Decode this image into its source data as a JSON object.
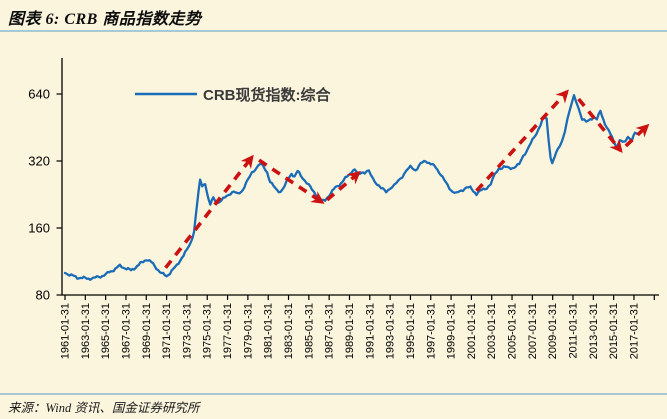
{
  "header": {
    "title": "图表 6: CRB 商品指数走势"
  },
  "legend": {
    "label": "CRB现货指数:综合"
  },
  "footer": {
    "source": "来源：Wind 资讯、国金证券研究所"
  },
  "colors": {
    "series_line": "#1B6CB7",
    "trend_arrow": "#CC1111",
    "background": "#FBF5DE",
    "divider": "#A6C9D4",
    "axis": "#000000",
    "legend_text": "#3a3a3a"
  },
  "chart_data": {
    "type": "line",
    "title": "CRB商品指数走势",
    "y_scale": "log2",
    "grid": false,
    "legend_position": "top-left-inside",
    "ylim": [
      80,
      700
    ],
    "y_ticks": [
      80,
      160,
      320,
      640
    ],
    "x_range_years": [
      1961,
      2019
    ],
    "x_tick_labels": [
      "1961-01-31",
      "1963-01-31",
      "1965-01-31",
      "1967-01-31",
      "1969-01-31",
      "1971-01-31",
      "1973-01-31",
      "1975-01-31",
      "1977-01-31",
      "1979-01-31",
      "1981-01-31",
      "1983-01-31",
      "1985-01-31",
      "1987-01-31",
      "1989-01-31",
      "1991-01-31",
      "1993-01-31",
      "1995-01-31",
      "1997-01-31",
      "1999-01-31",
      "2001-01-31",
      "2003-01-31",
      "2005-01-31",
      "2007-01-31",
      "2009-01-31",
      "2011-01-31",
      "2013-01-31",
      "2015-01-31",
      "2017-01-31"
    ],
    "series": [
      {
        "name": "CRB现货指数:综合",
        "color": "#1B6CB7",
        "points": [
          [
            1961.0,
            101
          ],
          [
            1961.6,
            98
          ],
          [
            1962.2,
            96
          ],
          [
            1963.0,
            95
          ],
          [
            1963.8,
            95
          ],
          [
            1964.5,
            97
          ],
          [
            1965.2,
            100
          ],
          [
            1965.8,
            104
          ],
          [
            1966.4,
            108
          ],
          [
            1966.9,
            106
          ],
          [
            1967.5,
            103
          ],
          [
            1968.1,
            108
          ],
          [
            1968.7,
            113
          ],
          [
            1969.0,
            116
          ],
          [
            1969.5,
            112
          ],
          [
            1970.0,
            106
          ],
          [
            1970.5,
            100
          ],
          [
            1971.0,
            97
          ],
          [
            1971.5,
            103
          ],
          [
            1972.0,
            108
          ],
          [
            1972.5,
            118
          ],
          [
            1973.0,
            127
          ],
          [
            1973.4,
            138
          ],
          [
            1973.7,
            155
          ],
          [
            1974.0,
            205
          ],
          [
            1974.3,
            262
          ],
          [
            1974.5,
            248
          ],
          [
            1974.8,
            255
          ],
          [
            1975.1,
            215
          ],
          [
            1975.3,
            203
          ],
          [
            1975.6,
            220
          ],
          [
            1976.0,
            208
          ],
          [
            1976.4,
            212
          ],
          [
            1976.9,
            223
          ],
          [
            1977.3,
            230
          ],
          [
            1977.6,
            232
          ],
          [
            1978.0,
            227
          ],
          [
            1978.5,
            238
          ],
          [
            1979.0,
            262
          ],
          [
            1979.4,
            284
          ],
          [
            1979.8,
            298
          ],
          [
            1980.2,
            310
          ],
          [
            1980.5,
            303
          ],
          [
            1980.9,
            285
          ],
          [
            1981.2,
            258
          ],
          [
            1981.7,
            240
          ],
          [
            1982.2,
            233
          ],
          [
            1982.6,
            245
          ],
          [
            1983.0,
            267
          ],
          [
            1983.3,
            282
          ],
          [
            1983.6,
            272
          ],
          [
            1983.9,
            287
          ],
          [
            1984.2,
            277
          ],
          [
            1984.6,
            262
          ],
          [
            1985.0,
            249
          ],
          [
            1985.3,
            238
          ],
          [
            1985.7,
            227
          ],
          [
            1986.0,
            219
          ],
          [
            1986.3,
            211
          ],
          [
            1986.6,
            214
          ],
          [
            1987.0,
            225
          ],
          [
            1987.3,
            233
          ],
          [
            1987.6,
            243
          ],
          [
            1988.0,
            251
          ],
          [
            1988.3,
            258
          ],
          [
            1988.6,
            267
          ],
          [
            1988.9,
            277
          ],
          [
            1989.2,
            287
          ],
          [
            1989.5,
            291
          ],
          [
            1989.9,
            278
          ],
          [
            1990.2,
            287
          ],
          [
            1990.5,
            283
          ],
          [
            1990.9,
            287
          ],
          [
            1991.3,
            268
          ],
          [
            1991.7,
            253
          ],
          [
            1992.1,
            241
          ],
          [
            1992.6,
            234
          ],
          [
            1993.0,
            242
          ],
          [
            1993.4,
            247
          ],
          [
            1993.8,
            260
          ],
          [
            1994.2,
            274
          ],
          [
            1994.6,
            290
          ],
          [
            1995.0,
            300
          ],
          [
            1995.5,
            292
          ],
          [
            1996.0,
            310
          ],
          [
            1996.5,
            321
          ],
          [
            1997.0,
            311
          ],
          [
            1997.5,
            299
          ],
          [
            1998.0,
            279
          ],
          [
            1998.5,
            254
          ],
          [
            1999.0,
            237
          ],
          [
            1999.5,
            228
          ],
          [
            2000.0,
            236
          ],
          [
            2000.5,
            243
          ],
          [
            2000.9,
            242
          ],
          [
            2001.5,
            228
          ],
          [
            2002.0,
            236
          ],
          [
            2002.5,
            243
          ],
          [
            2002.9,
            252
          ],
          [
            2003.3,
            277
          ],
          [
            2003.7,
            296
          ],
          [
            2004.2,
            301
          ],
          [
            2004.7,
            297
          ],
          [
            2005.2,
            300
          ],
          [
            2005.7,
            308
          ],
          [
            2006.1,
            338
          ],
          [
            2006.5,
            360
          ],
          [
            2007.0,
            395
          ],
          [
            2007.4,
            426
          ],
          [
            2007.8,
            468
          ],
          [
            2008.1,
            500
          ],
          [
            2008.4,
            494
          ],
          [
            2008.6,
            400
          ],
          [
            2008.8,
            335
          ],
          [
            2008.95,
            313
          ],
          [
            2009.2,
            335
          ],
          [
            2009.5,
            358
          ],
          [
            2009.9,
            392
          ],
          [
            2010.2,
            438
          ],
          [
            2010.45,
            490
          ],
          [
            2010.65,
            532
          ],
          [
            2010.85,
            572
          ],
          [
            2011.1,
            628
          ],
          [
            2011.3,
            600
          ],
          [
            2011.55,
            555
          ],
          [
            2011.9,
            492
          ],
          [
            2012.3,
            478
          ],
          [
            2012.7,
            494
          ],
          [
            2013.0,
            504
          ],
          [
            2013.35,
            490
          ],
          [
            2013.7,
            538
          ],
          [
            2014.0,
            492
          ],
          [
            2014.3,
            452
          ],
          [
            2014.7,
            420
          ],
          [
            2015.0,
            396
          ],
          [
            2015.35,
            370
          ],
          [
            2015.6,
            397
          ],
          [
            2015.9,
            385
          ],
          [
            2016.15,
            394
          ],
          [
            2016.4,
            412
          ],
          [
            2016.8,
            400
          ],
          [
            2017.1,
            426
          ],
          [
            2017.3,
            424
          ]
        ]
      }
    ],
    "annotations": [
      {
        "type": "trend-arrow",
        "direction": "up",
        "from": [
          1970.9,
          106
        ],
        "to": [
          1979.4,
          333
        ]
      },
      {
        "type": "trend-arrow",
        "direction": "down",
        "from": [
          1980.1,
          323
        ],
        "to": [
          1986.3,
          209
        ]
      },
      {
        "type": "trend-arrow",
        "direction": "up",
        "from": [
          1986.8,
          214
        ],
        "to": [
          1989.9,
          283
        ]
      },
      {
        "type": "trend-arrow",
        "direction": "up",
        "from": [
          2001.5,
          235
        ],
        "to": [
          2010.4,
          655
        ]
      },
      {
        "type": "trend-arrow",
        "direction": "down",
        "from": [
          2011.55,
          608
        ],
        "to": [
          2015.7,
          356
        ]
      },
      {
        "type": "trend-arrow",
        "direction": "up",
        "from": [
          2016.2,
          374
        ],
        "to": [
          2018.3,
          460
        ]
      }
    ]
  }
}
